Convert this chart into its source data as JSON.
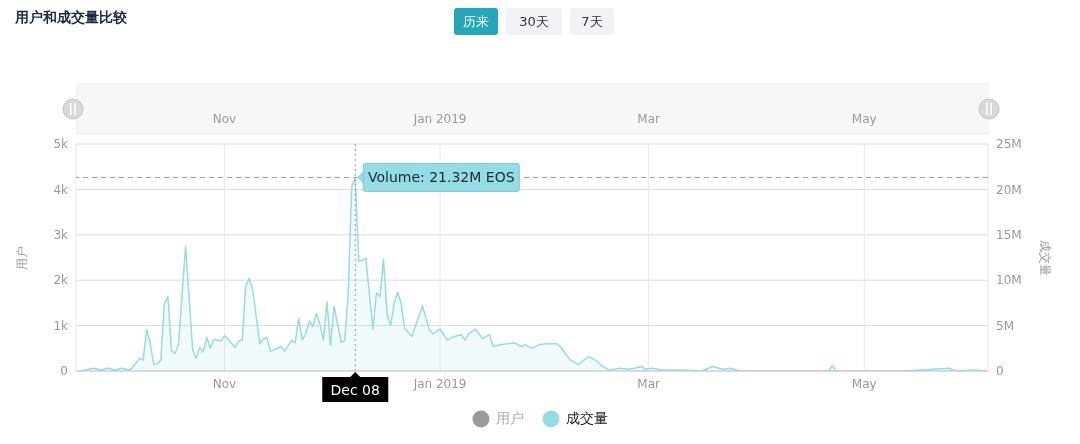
{
  "chart_data": {
    "type": "area",
    "title": "用户和成交量比较",
    "ylabel": "用户",
    "y2label": "成交量",
    "annotations": [
      "历来",
      "30天",
      "7天"
    ],
    "x": [
      "2018-09-21",
      "2018-09-25",
      "2018-09-27",
      "2018-09-29",
      "2018-10-01",
      "2018-10-03",
      "2018-10-05",
      "2018-10-06",
      "2018-10-08",
      "2018-10-09",
      "2018-10-10",
      "2018-10-11",
      "2018-10-12",
      "2018-10-13",
      "2018-10-14",
      "2018-10-15",
      "2018-10-16",
      "2018-10-17",
      "2018-10-18",
      "2018-10-19",
      "2018-10-21",
      "2018-10-22",
      "2018-10-23",
      "2018-10-24",
      "2018-10-25",
      "2018-10-26",
      "2018-10-27",
      "2018-10-28",
      "2018-10-29",
      "2018-10-31",
      "2018-11-01",
      "2018-11-02",
      "2018-11-04",
      "2018-11-05",
      "2018-11-06",
      "2018-11-07",
      "2018-11-08",
      "2018-11-09",
      "2018-11-11",
      "2018-11-12",
      "2018-11-13",
      "2018-11-14",
      "2018-11-15",
      "2018-11-17",
      "2018-11-18",
      "2018-11-20",
      "2018-11-21",
      "2018-11-22",
      "2018-11-23",
      "2018-11-24",
      "2018-11-25",
      "2018-11-26",
      "2018-11-27",
      "2018-11-28",
      "2018-11-29",
      "2018-11-30",
      "2018-12-01",
      "2018-12-02",
      "2018-12-03",
      "2018-12-04",
      "2018-12-05",
      "2018-12-06",
      "2018-12-07",
      "2018-12-08",
      "2018-12-09",
      "2018-12-10",
      "2018-12-11",
      "2018-12-12",
      "2018-12-13",
      "2018-12-14",
      "2018-12-15",
      "2018-12-16",
      "2018-12-17",
      "2018-12-18",
      "2018-12-19",
      "2018-12-20",
      "2018-12-21",
      "2018-12-22",
      "2018-12-24",
      "2018-12-27",
      "2018-12-29",
      "2018-12-30",
      "2019-01-01",
      "2019-01-03",
      "2019-01-05",
      "2019-01-07",
      "2019-01-08",
      "2019-01-09",
      "2019-01-11",
      "2019-01-13",
      "2019-01-15",
      "2019-01-16",
      "2019-01-18",
      "2019-01-20",
      "2019-01-22",
      "2019-01-24",
      "2019-01-25",
      "2019-01-27",
      "2019-01-29",
      "2019-01-31",
      "2019-02-03",
      "2019-02-04",
      "2019-02-06",
      "2019-02-07",
      "2019-02-09",
      "2019-02-12",
      "2019-02-14",
      "2019-02-16",
      "2019-02-18",
      "2019-02-21",
      "2019-02-23",
      "2019-02-25",
      "2019-02-27",
      "2019-02-28",
      "2019-03-02",
      "2019-03-05",
      "2019-03-11",
      "2019-03-16",
      "2019-03-19",
      "2019-03-22",
      "2019-03-24",
      "2019-03-27",
      "2019-04-02",
      "2019-04-10",
      "2019-04-21",
      "2019-04-22",
      "2019-04-23",
      "2019-05-01",
      "2019-05-12",
      "2019-05-25",
      "2019-05-27",
      "2019-06-01",
      "2019-06-05"
    ],
    "series": [
      {
        "name": "用户",
        "color": "#9a9a9a",
        "values": [
          null,
          null,
          null,
          null,
          null,
          null,
          null,
          null,
          null,
          null,
          null,
          null,
          null,
          null,
          null,
          null,
          null,
          null,
          null,
          null,
          null,
          null,
          null,
          null,
          null,
          null,
          null,
          null,
          null,
          null,
          null,
          null,
          null,
          null,
          null,
          null,
          null,
          null,
          null,
          null,
          null,
          null,
          null,
          null,
          null,
          null,
          null,
          null,
          null,
          null,
          null,
          null,
          null,
          null,
          null,
          null,
          null,
          null,
          null,
          null,
          null,
          null,
          null,
          null,
          null,
          null,
          null,
          null,
          null,
          null,
          null,
          null,
          null,
          null,
          null,
          null,
          null,
          null,
          null,
          null,
          null,
          null,
          null,
          null,
          null,
          null,
          null,
          null,
          null,
          null,
          null,
          null,
          null,
          null,
          null,
          null,
          null,
          null,
          null,
          null,
          null,
          null,
          null,
          null,
          null,
          null,
          null,
          null,
          null,
          null,
          null,
          null,
          null,
          null,
          null,
          null,
          null,
          null,
          null,
          null,
          null,
          null,
          null,
          null,
          null,
          null,
          null,
          null,
          null,
          null,
          null,
          null,
          null
        ]
      },
      {
        "name": "成交量",
        "color": "#94dde6",
        "axis": "y2",
        "values": [
          0,
          300000,
          100000,
          300000,
          100000,
          300000,
          100000,
          400000,
          1400000,
          1200000,
          4600000,
          3000000,
          700000,
          800000,
          1200000,
          7400000,
          8200000,
          2300000,
          1900000,
          3000000,
          13700000,
          8200000,
          2300000,
          1400000,
          2600000,
          2100000,
          3700000,
          2500000,
          3500000,
          3300000,
          3900000,
          3500000,
          2600000,
          3300000,
          3400000,
          9300000,
          10200000,
          8900000,
          3000000,
          3500000,
          3700000,
          2200000,
          2300000,
          2700000,
          2200000,
          3400000,
          3100000,
          5800000,
          3400000,
          4100000,
          5500000,
          4900000,
          6300000,
          5200000,
          3400000,
          7600000,
          2800000,
          7100000,
          5200000,
          3200000,
          3300000,
          8500000,
          20300000,
          21320000,
          12100000,
          12200000,
          12400000,
          8500000,
          4600000,
          8600000,
          8200000,
          12300000,
          6300000,
          5000000,
          7400000,
          8700000,
          7400000,
          4700000,
          3800000,
          7200000,
          4500000,
          4100000,
          4600000,
          3400000,
          3800000,
          4000000,
          3400000,
          4100000,
          4600000,
          3600000,
          4000000,
          2700000,
          2900000,
          3000000,
          3100000,
          2700000,
          2900000,
          2500000,
          2900000,
          3000000,
          3000000,
          2700000,
          1600000,
          1200000,
          700000,
          1600000,
          1200000,
          500000,
          100000,
          300000,
          200000,
          300000,
          500000,
          200000,
          300000,
          100000,
          100000,
          0,
          500000,
          200000,
          300000,
          0,
          0,
          0,
          0,
          600000,
          0,
          0,
          0,
          300000,
          0,
          100000,
          0
        ]
      }
    ],
    "xlim": [
      "2018-09-20",
      "2019-06-05"
    ],
    "xticks": [
      {
        "value": "2018-11-01",
        "label": "Nov"
      },
      {
        "value": "2019-01-01",
        "label": "Jan 2019"
      },
      {
        "value": "2019-03-01",
        "label": "Mar"
      },
      {
        "value": "2019-05-01",
        "label": "May"
      }
    ],
    "ylim": [
      0,
      5000
    ],
    "yticks": [
      0,
      {
        "value": 1000,
        "label": "1k"
      },
      {
        "value": 2000,
        "label": "2k"
      },
      {
        "value": 3000,
        "label": "3k"
      },
      {
        "value": 4000,
        "label": "4k"
      },
      {
        "value": 5000,
        "label": "5k"
      }
    ],
    "y2lim": [
      0,
      25000000
    ],
    "y2ticks": [
      0,
      {
        "value": 5000000,
        "label": "5M"
      },
      {
        "value": 10000000,
        "label": "10M"
      },
      {
        "value": 15000000,
        "label": "15M"
      },
      {
        "value": 20000000,
        "label": "20M"
      },
      {
        "value": 25000000,
        "label": "25M"
      }
    ],
    "ref_lines": [
      {
        "axis": "x",
        "value": "2018-12-08",
        "label": "Dec 08",
        "line_style": "dotted"
      },
      {
        "axis": "y2",
        "value": 21320000,
        "label": "Volume: 21.32M EOS",
        "line_style": "dashed"
      }
    ],
    "grid": true,
    "legend": "bottom"
  }
}
